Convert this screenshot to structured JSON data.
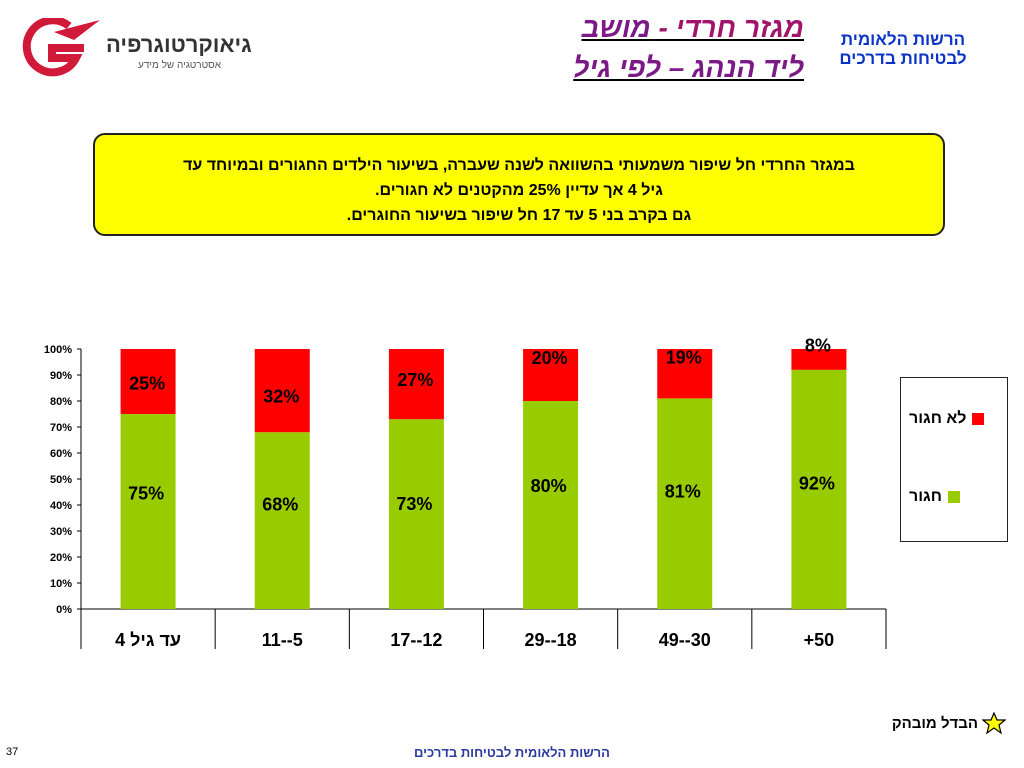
{
  "logo": {
    "brand": "גיאוקרטוגרפיה",
    "tagline": "אסטרטגיה של מידע"
  },
  "title": {
    "part1": "מגזר חרדי - ",
    "part2": "מושב ליד הנהג – לפי גיל"
  },
  "org": {
    "line1": "הרשות הלאומית",
    "line2": "לבטיחות בדרכים"
  },
  "callout": {
    "line1": "במגזר החרדי חל שיפור משמעותי בהשוואה לשנה שעברה, בשיעור הילדים החגורים ובמיוחד עד",
    "line2": "גיל 4 אך עדיין 25% מהקטנים לא חגורים.",
    "line3": "גם בקרב בני 5 עד 17 חל שיפור בשיעור החוגרים."
  },
  "chart_data": {
    "type": "bar",
    "stacked": true,
    "percent": true,
    "categories": [
      "עד גיל 4",
      "5--11",
      "12--17",
      "18--29",
      "30--49",
      "50+"
    ],
    "series": [
      {
        "name": "חגור",
        "color": "#99cc00",
        "values": [
          75,
          68,
          73,
          80,
          81,
          92
        ],
        "labels": [
          "75%",
          "68%",
          "73%",
          "80%",
          "81%",
          "92%"
        ]
      },
      {
        "name": "לא חגור",
        "color": "#ff0000",
        "values": [
          25,
          32,
          27,
          20,
          19,
          8
        ],
        "labels": [
          "25%",
          "32%",
          "27%",
          "20%",
          "19%",
          "8%"
        ]
      }
    ],
    "yticks": [
      "0%",
      "10%",
      "20%",
      "30%",
      "40%",
      "50%",
      "60%",
      "70%",
      "80%",
      "90%",
      "100%"
    ],
    "ylim": [
      0,
      100
    ],
    "legend": "right"
  },
  "legend": {
    "not_belted": "לא חגור",
    "belted": "חגור"
  },
  "bottom_note": "הבדל מובהק",
  "page_number": "37",
  "footer": "הרשות הלאומית לבטיחות בדרכים"
}
